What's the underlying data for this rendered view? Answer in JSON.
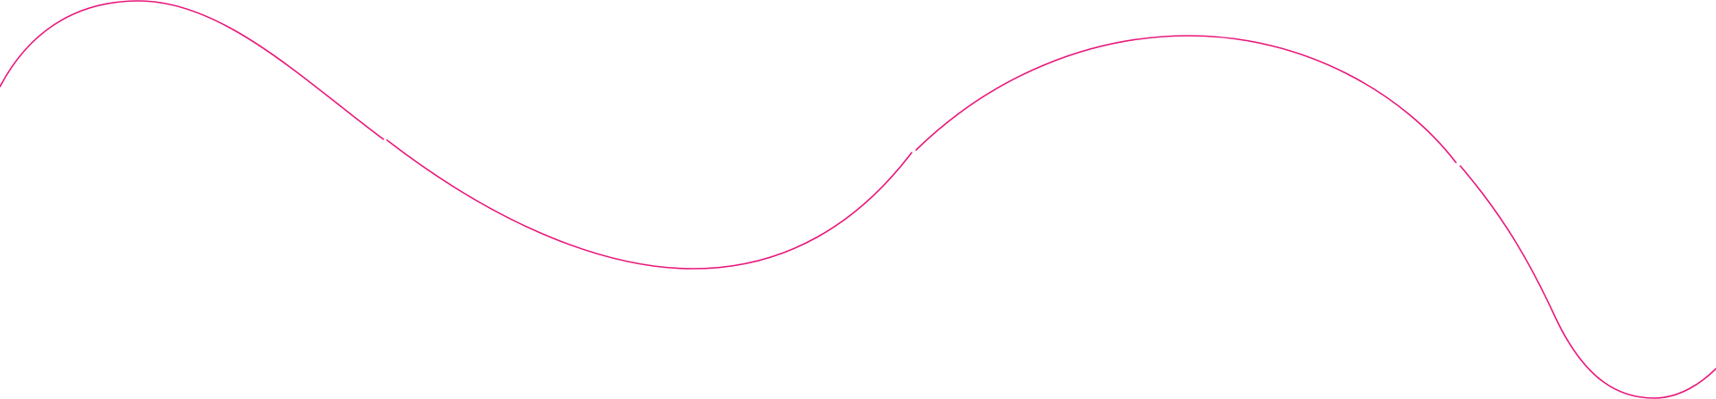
{
  "decoration": {
    "type": "wave-line",
    "color": "#e8177a",
    "segments": 4
  }
}
